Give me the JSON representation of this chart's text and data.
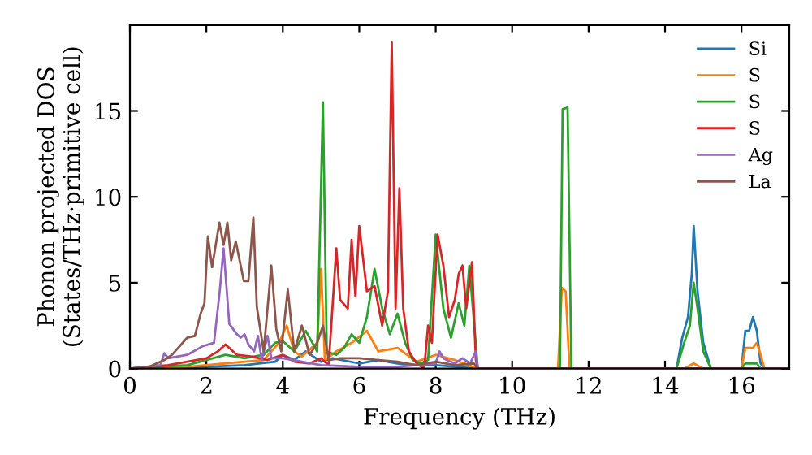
{
  "chart_data": {
    "type": "line",
    "xlabel": "Frequency (THz)",
    "ylabel": "Phonon projected DOS\n(States/THz·primitive cell)",
    "xlim": [
      0,
      17.25
    ],
    "ylim": [
      0,
      20
    ],
    "xticks": [
      0,
      2,
      4,
      6,
      8,
      10,
      12,
      14,
      16
    ],
    "yticks": [
      0,
      5,
      10,
      15
    ],
    "grid": false,
    "legend": "top right",
    "marker": "none",
    "line_style": "solid",
    "series": [
      {
        "name": "Si",
        "color": "#1f77b4",
        "x": [
          0,
          2,
          3,
          3.8,
          4.0,
          4.3,
          4.6,
          5.0,
          5.3,
          6.0,
          6.5,
          7.0,
          7.5,
          8.0,
          8.5,
          9.1,
          14.3,
          14.45,
          14.6,
          14.7,
          14.75,
          14.85,
          15.0,
          15.2,
          16.0,
          16.1,
          16.2,
          16.3,
          16.4,
          16.5,
          16.6,
          17.2
        ],
        "values": [
          0,
          0.1,
          0.2,
          0.4,
          0.8,
          0.5,
          1.0,
          0.4,
          0.6,
          0.3,
          0.5,
          0.3,
          0.2,
          0.2,
          0.1,
          0,
          0,
          1.8,
          3.0,
          5.5,
          8.3,
          4.5,
          1.5,
          0,
          0,
          2.2,
          2.2,
          3.0,
          2.2,
          0.3,
          0,
          0
        ]
      },
      {
        "name": "S",
        "color": "#ff7f0e",
        "x": [
          0,
          1.5,
          2.5,
          3.0,
          3.5,
          3.9,
          4.1,
          4.3,
          4.5,
          4.9,
          5.0,
          5.1,
          5.4,
          5.8,
          6.2,
          6.5,
          7.0,
          7.5,
          8.0,
          8.5,
          9.1,
          11.2,
          11.3,
          11.4,
          11.5,
          14.5,
          14.75,
          15.0,
          16.0,
          16.1,
          16.3,
          16.4,
          16.5,
          16.6,
          17.2
        ],
        "values": [
          0,
          0.1,
          0.3,
          0.4,
          0.5,
          1.5,
          2.5,
          1.0,
          0.7,
          1.5,
          5.8,
          0.5,
          1.0,
          1.5,
          2.2,
          1.0,
          1.2,
          0.4,
          0.8,
          0.5,
          0,
          0,
          4.7,
          4.5,
          0,
          0,
          0.3,
          0,
          0,
          1.2,
          1.2,
          1.5,
          0.8,
          0,
          0
        ]
      },
      {
        "name": "S",
        "color": "#2ca02c",
        "x": [
          0,
          1.5,
          2.5,
          3.0,
          3.5,
          3.8,
          4.0,
          4.3,
          4.6,
          4.9,
          5.05,
          5.15,
          5.4,
          5.6,
          5.8,
          6.0,
          6.2,
          6.4,
          6.6,
          6.8,
          7.0,
          7.2,
          7.4,
          7.6,
          7.8,
          8.0,
          8.2,
          8.4,
          8.6,
          8.75,
          8.88,
          9.1,
          11.25,
          11.32,
          11.45,
          11.55,
          14.3,
          14.5,
          14.65,
          14.75,
          14.85,
          15.0,
          15.2,
          16.0,
          16.1,
          16.4,
          16.5,
          17.2
        ],
        "values": [
          0,
          0.2,
          0.8,
          0.6,
          0.8,
          1.5,
          1.6,
          1.0,
          2.2,
          1.0,
          15.5,
          1.0,
          0.8,
          1.2,
          2.0,
          1.5,
          3.0,
          5.8,
          3.5,
          2.0,
          3.2,
          1.5,
          0.5,
          0.3,
          0.5,
          7.8,
          3.5,
          1.8,
          3.8,
          2.5,
          6.0,
          0,
          0,
          15.1,
          15.2,
          0,
          0,
          1.5,
          2.5,
          5.0,
          3.5,
          1.0,
          0,
          0,
          0.3,
          0.3,
          0,
          0
        ]
      },
      {
        "name": "S",
        "color": "#d62728",
        "x": [
          0,
          1.0,
          1.5,
          2.0,
          2.3,
          2.5,
          2.8,
          3.2,
          3.6,
          4.0,
          4.3,
          4.7,
          5.0,
          5.2,
          5.4,
          5.5,
          5.7,
          5.8,
          5.9,
          6.0,
          6.2,
          6.4,
          6.6,
          6.75,
          6.85,
          6.95,
          7.05,
          7.15,
          7.3,
          7.5,
          7.7,
          7.8,
          7.9,
          8.05,
          8.2,
          8.35,
          8.5,
          8.6,
          8.7,
          8.8,
          8.95,
          9.05,
          9.1,
          17.2
        ],
        "values": [
          0,
          0.2,
          0.4,
          0.6,
          1.0,
          1.4,
          0.8,
          0.7,
          0.5,
          0.8,
          0.4,
          0.3,
          0.6,
          0.2,
          7.0,
          4.0,
          3.5,
          7.5,
          4.2,
          8.3,
          4.5,
          4.8,
          2.5,
          4.5,
          19.0,
          3.5,
          10.5,
          3.5,
          1.0,
          0.3,
          0,
          2.5,
          1.5,
          7.8,
          6.0,
          3.0,
          4.0,
          5.5,
          6.0,
          3.5,
          6.2,
          0.5,
          0,
          0
        ]
      },
      {
        "name": "Ag",
        "color": "#9467bd",
        "x": [
          0,
          0.8,
          0.9,
          1.0,
          1.5,
          1.9,
          2.2,
          2.35,
          2.45,
          2.6,
          2.8,
          2.9,
          3.0,
          3.1,
          3.25,
          3.35,
          3.45,
          3.6,
          3.7,
          4.0,
          4.5,
          5.0,
          6.0,
          7.0,
          8.0,
          8.1,
          8.2,
          8.5,
          8.7,
          8.9,
          9.05,
          9.1,
          17.2
        ],
        "values": [
          0,
          0.2,
          0.9,
          0.6,
          0.8,
          1.3,
          1.5,
          4.5,
          7.0,
          2.6,
          2.0,
          1.8,
          2.0,
          1.4,
          1.0,
          1.9,
          0.5,
          1.9,
          0.6,
          0.6,
          0.4,
          0.2,
          0.1,
          0.1,
          0.3,
          1.0,
          0.6,
          0.3,
          0.6,
          0.3,
          1.0,
          0,
          0
        ]
      },
      {
        "name": "La",
        "color": "#8c564b",
        "x": [
          0,
          0.5,
          0.9,
          1.1,
          1.3,
          1.5,
          1.7,
          1.85,
          1.95,
          2.04,
          2.15,
          2.34,
          2.45,
          2.55,
          2.65,
          2.77,
          2.98,
          3.1,
          3.23,
          3.32,
          3.5,
          3.7,
          3.83,
          3.96,
          4.13,
          4.3,
          4.5,
          4.7,
          4.9,
          5.05,
          5.2,
          5.5,
          6.0,
          6.5,
          7.0,
          7.5,
          8.0,
          8.5,
          9.0,
          9.1,
          17.2
        ],
        "values": [
          0,
          0.1,
          0.5,
          0.8,
          1.3,
          1.8,
          1.9,
          3.2,
          3.8,
          7.7,
          5.9,
          8.5,
          7.2,
          8.5,
          6.3,
          7.4,
          5.1,
          5.1,
          8.8,
          3.6,
          1.0,
          6.0,
          2.3,
          1.0,
          4.6,
          1.0,
          2.5,
          0.8,
          1.5,
          2.5,
          0.5,
          0.6,
          0.6,
          0.5,
          0.4,
          0.2,
          0.4,
          0.2,
          0.3,
          0,
          0
        ]
      }
    ]
  }
}
